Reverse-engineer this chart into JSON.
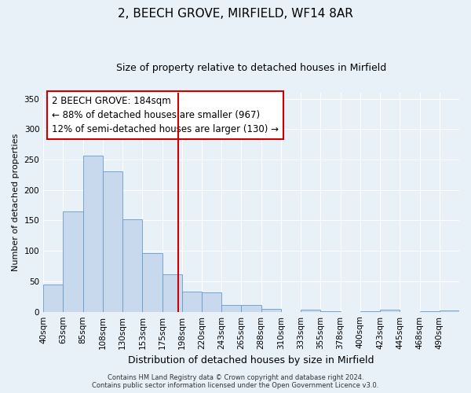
{
  "title": "2, BEECH GROVE, MIRFIELD, WF14 8AR",
  "subtitle": "Size of property relative to detached houses in Mirfield",
  "xlabel": "Distribution of detached houses by size in Mirfield",
  "ylabel": "Number of detached properties",
  "bar_labels": [
    "40sqm",
    "63sqm",
    "85sqm",
    "108sqm",
    "130sqm",
    "153sqm",
    "175sqm",
    "198sqm",
    "220sqm",
    "243sqm",
    "265sqm",
    "288sqm",
    "310sqm",
    "333sqm",
    "355sqm",
    "378sqm",
    "400sqm",
    "423sqm",
    "445sqm",
    "468sqm",
    "490sqm"
  ],
  "bar_heights": [
    45,
    165,
    257,
    230,
    152,
    97,
    61,
    33,
    32,
    11,
    11,
    5,
    0,
    3,
    1,
    0,
    1,
    4,
    0,
    1,
    2
  ],
  "bar_color": "#c8d9ee",
  "bar_edge_color": "#6699cc",
  "vline_x": 6.82,
  "vline_color": "#cc0000",
  "annotation_line1": "2 BEECH GROVE: 184sqm",
  "annotation_line2": "← 88% of detached houses are smaller (967)",
  "annotation_line3": "12% of semi-detached houses are larger (130) →",
  "annotation_box_facecolor": "#ffffff",
  "annotation_box_edgecolor": "#cc0000",
  "ylim": [
    0,
    360
  ],
  "yticks": [
    0,
    50,
    100,
    150,
    200,
    250,
    300,
    350
  ],
  "footer_line1": "Contains HM Land Registry data © Crown copyright and database right 2024.",
  "footer_line2": "Contains public sector information licensed under the Open Government Licence v3.0.",
  "bg_color": "#e8f0f8",
  "grid_color": "#ffffff",
  "title_fontsize": 11,
  "subtitle_fontsize": 9,
  "xlabel_fontsize": 9,
  "ylabel_fontsize": 8,
  "tick_fontsize": 7.5,
  "annotation_fontsize": 8.5,
  "footer_fontsize": 6
}
